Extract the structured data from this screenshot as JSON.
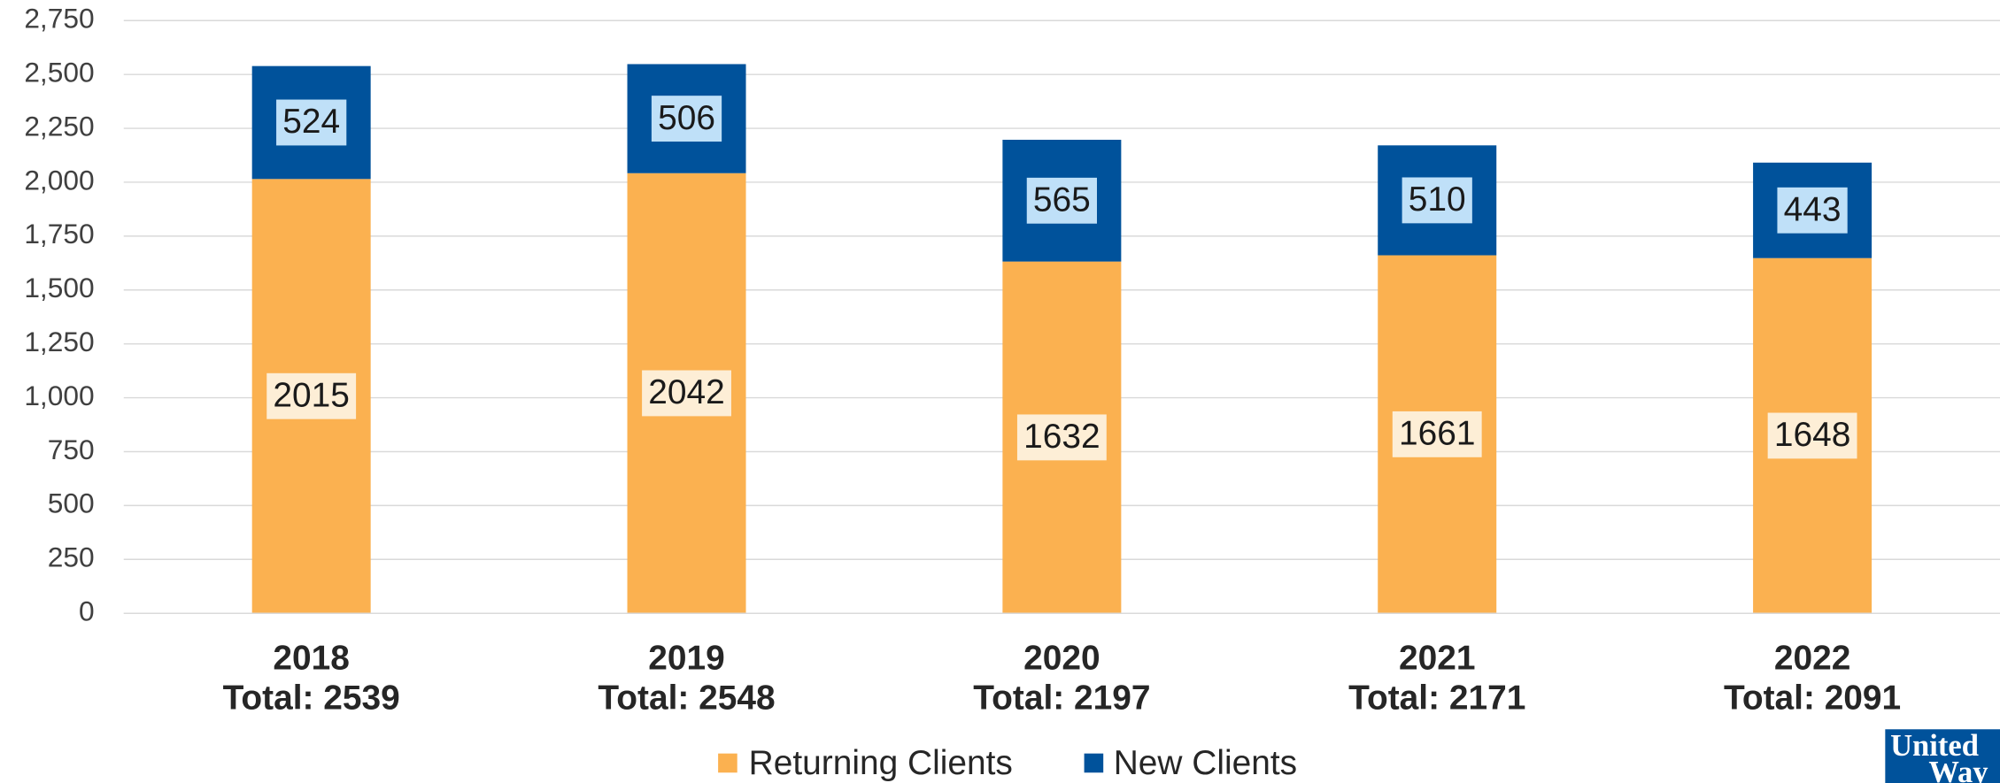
{
  "chart_data": {
    "type": "stacked_bar",
    "categories": [
      "2018",
      "2019",
      "2020",
      "2021",
      "2022"
    ],
    "category_totals": [
      {
        "value": 2539,
        "label": "Total: 2539"
      },
      {
        "value": 2548,
        "label": "Total: 2548"
      },
      {
        "value": 2197,
        "label": "Total: 2197"
      },
      {
        "value": 2171,
        "label": "Total: 2171"
      },
      {
        "value": 2091,
        "label": "Total: 2091"
      }
    ],
    "series": [
      {
        "name": "Returning Clients",
        "color": "#fbb150",
        "label_bg": "#fdeed6",
        "values": [
          2015,
          2042,
          1632,
          1661,
          1648
        ]
      },
      {
        "name": "New Clients",
        "color": "#00529b",
        "label_bg": "#bfe0f8",
        "values": [
          524,
          506,
          565,
          510,
          443
        ]
      }
    ],
    "ylim": [
      0,
      2750
    ],
    "yticks": [
      0,
      250,
      500,
      750,
      {
        "value": 1000,
        "label": "1,000"
      },
      {
        "value": 1250,
        "label": "1,250"
      },
      {
        "value": 1500,
        "label": "1,500"
      },
      {
        "value": 1750,
        "label": "1,750"
      },
      {
        "value": 2000,
        "label": "2,000"
      },
      {
        "value": 2250,
        "label": "2,250"
      },
      {
        "value": 2500,
        "label": "2,500"
      },
      {
        "value": 2750,
        "label": "2,750"
      }
    ],
    "grid": true,
    "legend": "bottom",
    "logo": [
      "United",
      "Way"
    ]
  }
}
